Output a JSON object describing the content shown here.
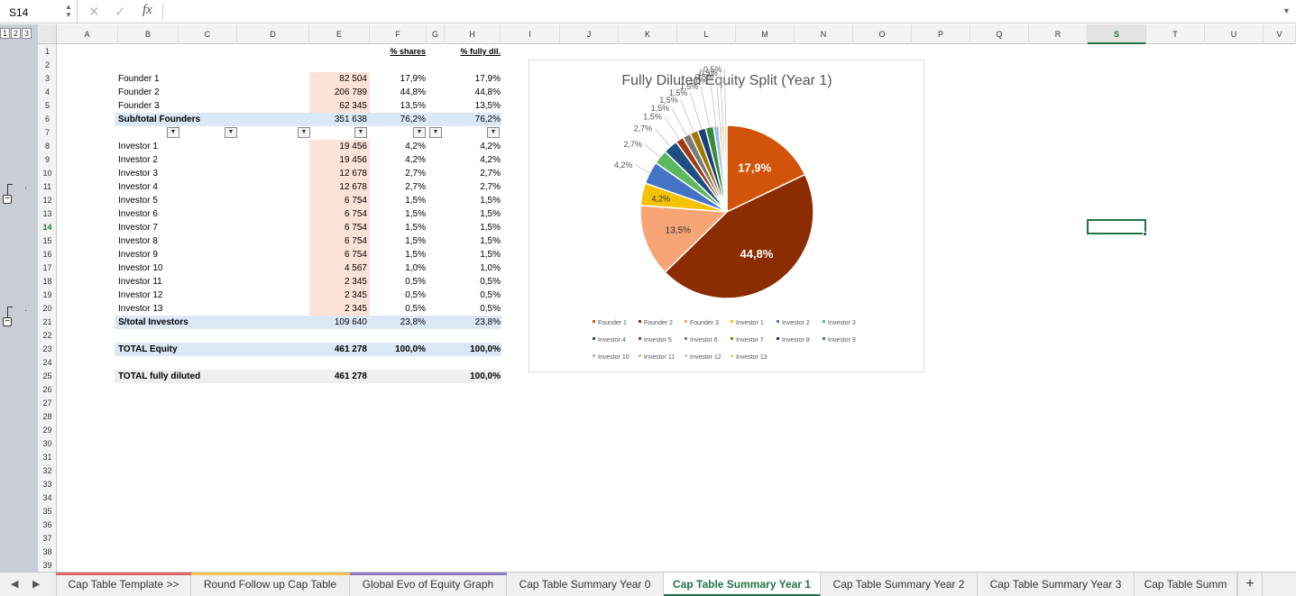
{
  "formula_bar": {
    "name_box": "S14",
    "cancel_icon": "cancel-icon",
    "enter_icon": "check-icon",
    "fx_label": "fx",
    "formula": ""
  },
  "outline": {
    "levels": [
      "1",
      "2",
      "3"
    ]
  },
  "columns": [
    "A",
    "B",
    "C",
    "D",
    "E",
    "F",
    "G",
    "H",
    "I",
    "J",
    "K",
    "L",
    "M",
    "N",
    "O",
    "P",
    "Q",
    "R",
    "S",
    "T",
    "U",
    "V"
  ],
  "selected_column": "S",
  "rows": [
    "1",
    "2",
    "3",
    "4",
    "5",
    "6",
    "7",
    "8",
    "9",
    "10",
    "11",
    "12",
    "13",
    "14",
    "15",
    "16",
    "17",
    "18",
    "19",
    "20",
    "21",
    "22",
    "23",
    "24",
    "25",
    "26",
    "27",
    "28",
    "29",
    "30",
    "31",
    "32",
    "33",
    "34",
    "35",
    "36",
    "37",
    "38",
    "39"
  ],
  "selected_row": "14",
  "headers": {
    "pct_shares": "% shares",
    "pct_fully_dil": "% fully dil."
  },
  "founders": [
    {
      "name": "Founder 1",
      "shares": "82 504",
      "pct": "17,9%",
      "dil": "17,9%"
    },
    {
      "name": "Founder 2",
      "shares": "206 789",
      "pct": "44,8%",
      "dil": "44,8%"
    },
    {
      "name": "Founder 3",
      "shares": "62 345",
      "pct": "13,5%",
      "dil": "13,5%"
    }
  ],
  "subtotal_founders": {
    "label": "Sub/total Founders",
    "shares": "351 638",
    "pct": "76,2%",
    "dil": "76,2%"
  },
  "investors": [
    {
      "name": "Investor 1",
      "shares": "19 456",
      "pct": "4,2%",
      "dil": "4,2%"
    },
    {
      "name": "Investor 2",
      "shares": "19 456",
      "pct": "4,2%",
      "dil": "4,2%"
    },
    {
      "name": "Investor 3",
      "shares": "12 678",
      "pct": "2,7%",
      "dil": "2,7%"
    },
    {
      "name": "Investor 4",
      "shares": "12 678",
      "pct": "2,7%",
      "dil": "2,7%"
    },
    {
      "name": "Investor 5",
      "shares": "6 754",
      "pct": "1,5%",
      "dil": "1,5%"
    },
    {
      "name": "Investor 6",
      "shares": "6 754",
      "pct": "1,5%",
      "dil": "1,5%"
    },
    {
      "name": "Investor 7",
      "shares": "6 754",
      "pct": "1,5%",
      "dil": "1,5%"
    },
    {
      "name": "Investor 8",
      "shares": "6 754",
      "pct": "1,5%",
      "dil": "1,5%"
    },
    {
      "name": "Investor 9",
      "shares": "6 754",
      "pct": "1,5%",
      "dil": "1,5%"
    },
    {
      "name": "Investor 10",
      "shares": "4 567",
      "pct": "1,0%",
      "dil": "1,0%"
    },
    {
      "name": "Investor 11",
      "shares": "2 345",
      "pct": "0,5%",
      "dil": "0,5%"
    },
    {
      "name": "Investor 12",
      "shares": "2 345",
      "pct": "0,5%",
      "dil": "0,5%"
    },
    {
      "name": "Investor 13",
      "shares": "2 345",
      "pct": "0,5%",
      "dil": "0,5%"
    }
  ],
  "subtotal_investors": {
    "label": "S/total Investors",
    "shares": "109 640",
    "pct": "23,8%",
    "dil": "23,8%"
  },
  "total_equity": {
    "label": "TOTAL Equity",
    "shares": "461 278",
    "pct": "100,0%",
    "dil": "100,0%"
  },
  "total_diluted": {
    "label": "TOTAL fully diluted",
    "shares": "461 278",
    "dil": "100,0%"
  },
  "chart_data": {
    "type": "pie",
    "title": "Fully Diluted Equity Split  (Year 1)",
    "categories": [
      "Founder 1",
      "Founder 2",
      "Founder 3",
      "Investor 1",
      "Investor 2",
      "Investor 3",
      "Investor 4",
      "Investor 5",
      "Investor 6",
      "Investor 7",
      "Investor 8",
      "Investor 9",
      "Investor 10",
      "Investor 11",
      "Investor 12",
      "Investor 13"
    ],
    "values": [
      17.9,
      44.8,
      13.5,
      4.2,
      4.2,
      2.7,
      2.7,
      1.5,
      1.5,
      1.5,
      1.5,
      1.5,
      1.0,
      0.5,
      0.5,
      0.5
    ],
    "labels": [
      "17,9%",
      "44,8%",
      "13,5%",
      "4,2%",
      "4,2%",
      "2,7%",
      "2,7%",
      "1,5%",
      "1,5%",
      "1,5%",
      "1,5%",
      "1,5%",
      "1,0%",
      "0,5%",
      "0,5%",
      "0,5%"
    ],
    "colors": [
      "#d2540b",
      "#8b2c02",
      "#f7a477",
      "#f4c200",
      "#4472c4",
      "#5cb85c",
      "#1e4f82",
      "#a13c10",
      "#7a7a7a",
      "#a07800",
      "#1c3e7a",
      "#3b8a3b",
      "#9bc1e6",
      "#e8b28e",
      "#c8c8c8",
      "#f4d36b"
    ],
    "legend_position": "bottom"
  },
  "tabs": [
    "Cap Table Template >>",
    "Round Follow up Cap Table",
    "Global Evo of Equity Graph",
    "Cap Table Summary Year 0",
    "Cap Table Summary Year 1",
    "Cap Table Summary Year 2",
    "Cap Table Summary Year 3",
    "Cap Table Summ"
  ],
  "active_tab": "Cap Table Summary Year 1",
  "tab_colors": [
    "#e06666",
    "#f6c353",
    "#8e7cc3"
  ],
  "add_sheet": "+",
  "nav": {
    "prev": "◀",
    "next": "▶"
  }
}
